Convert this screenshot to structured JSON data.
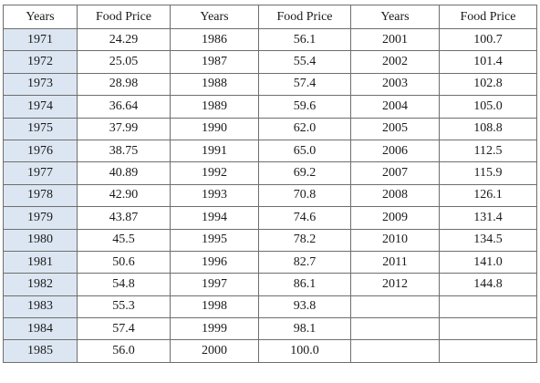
{
  "table": {
    "headers": [
      "Years",
      "Food Price",
      "Years",
      "Food Price",
      "Years",
      "Food Price"
    ],
    "rows": [
      [
        "1971",
        "24.29",
        "1986",
        "56.1",
        "2001",
        "100.7"
      ],
      [
        "1972",
        "25.05",
        "1987",
        "55.4",
        "2002",
        "101.4"
      ],
      [
        "1973",
        "28.98",
        "1988",
        "57.4",
        "2003",
        "102.8"
      ],
      [
        "1974",
        "36.64",
        "1989",
        "59.6",
        "2004",
        "105.0"
      ],
      [
        "1975",
        "37.99",
        "1990",
        "62.0",
        "2005",
        "108.8"
      ],
      [
        "1976",
        "38.75",
        "1991",
        "65.0",
        "2006",
        "112.5"
      ],
      [
        "1977",
        "40.89",
        "1992",
        "69.2",
        "2007",
        "115.9"
      ],
      [
        "1978",
        "42.90",
        "1993",
        "70.8",
        "2008",
        "126.1"
      ],
      [
        "1979",
        "43.87",
        "1994",
        "74.6",
        "2009",
        "131.4"
      ],
      [
        "1980",
        "45.5",
        "1995",
        "78.2",
        "2010",
        "134.5"
      ],
      [
        "1981",
        "50.6",
        "1996",
        "82.7",
        "2011",
        "141.0"
      ],
      [
        "1982",
        "54.8",
        "1997",
        "86.1",
        "2012",
        "144.8"
      ],
      [
        "1983",
        "55.3",
        "1998",
        "93.8",
        "",
        ""
      ],
      [
        "1984",
        "57.4",
        "1999",
        "98.1",
        "",
        ""
      ],
      [
        "1985",
        "56.0",
        "2000",
        "100.0",
        "",
        ""
      ]
    ],
    "colors": {
      "first_column_shade": "#dce6f2",
      "border": "#6e6e6e"
    }
  }
}
